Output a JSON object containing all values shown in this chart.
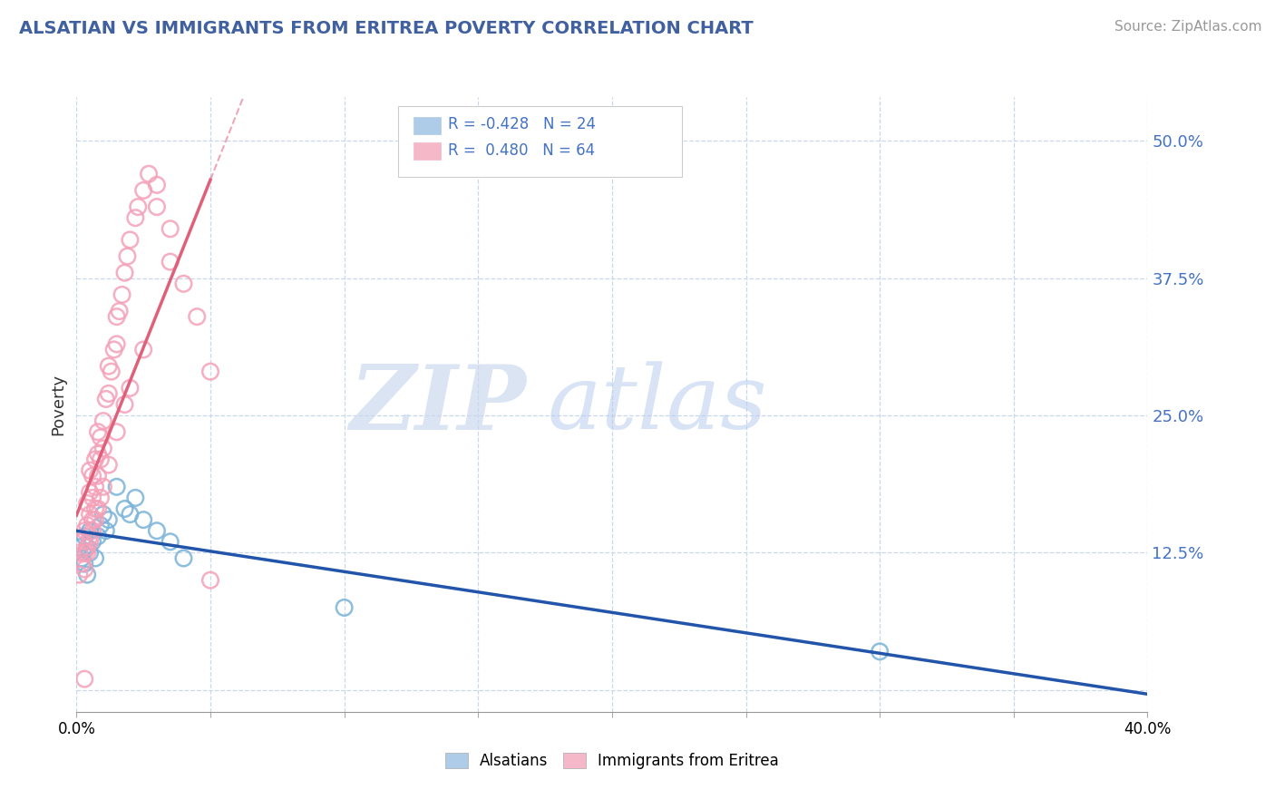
{
  "title": "ALSATIAN VS IMMIGRANTS FROM ERITREA POVERTY CORRELATION CHART",
  "source": "Source: ZipAtlas.com",
  "ylabel": "Poverty",
  "xlim": [
    0.0,
    0.4
  ],
  "ylim": [
    -0.02,
    0.54
  ],
  "y_ticks": [
    0.0,
    0.125,
    0.25,
    0.375,
    0.5
  ],
  "y_tick_labels": [
    "",
    "12.5%",
    "25.0%",
    "37.5%",
    "50.0%"
  ],
  "x_ticks": [
    0.0,
    0.05,
    0.1,
    0.15,
    0.2,
    0.25,
    0.3,
    0.35,
    0.4
  ],
  "x_tick_labels": [
    "0.0%",
    "",
    "",
    "",
    "",
    "",
    "",
    "",
    "40.0%"
  ],
  "alsatians_color": "#7ab3d9",
  "eritrea_color": "#f4a0b8",
  "alsatians_line_color": "#2255aa",
  "eritrea_line_color": "#e0607a",
  "legend_blue_color": "#aecce8",
  "legend_pink_color": "#f5b8c8",
  "watermark_zip_color": "#ccd9ee",
  "watermark_atlas_color": "#b8ccee",
  "alsatians_x": [
    0.001,
    0.002,
    0.003,
    0.003,
    0.004,
    0.004,
    0.005,
    0.005,
    0.006,
    0.007,
    0.008,
    0.009,
    0.01,
    0.011,
    0.012,
    0.015,
    0.018,
    0.02,
    0.022,
    0.025,
    0.03,
    0.035,
    0.04,
    0.1,
    0.3
  ],
  "alsatians_y": [
    0.13,
    0.12,
    0.14,
    0.115,
    0.13,
    0.105,
    0.125,
    0.145,
    0.135,
    0.12,
    0.14,
    0.15,
    0.16,
    0.145,
    0.155,
    0.185,
    0.165,
    0.16,
    0.175,
    0.155,
    0.145,
    0.135,
    0.12,
    0.075,
    0.035
  ],
  "eritrea_x": [
    0.001,
    0.001,
    0.002,
    0.002,
    0.003,
    0.003,
    0.003,
    0.004,
    0.004,
    0.004,
    0.005,
    0.005,
    0.005,
    0.005,
    0.006,
    0.006,
    0.006,
    0.007,
    0.007,
    0.007,
    0.008,
    0.008,
    0.008,
    0.009,
    0.009,
    0.01,
    0.01,
    0.011,
    0.012,
    0.012,
    0.013,
    0.014,
    0.015,
    0.015,
    0.016,
    0.017,
    0.018,
    0.019,
    0.02,
    0.022,
    0.023,
    0.025,
    0.027,
    0.03,
    0.03,
    0.035,
    0.035,
    0.04,
    0.045,
    0.05,
    0.003,
    0.004,
    0.005,
    0.006,
    0.007,
    0.008,
    0.009,
    0.01,
    0.012,
    0.015,
    0.018,
    0.02,
    0.025,
    0.05
  ],
  "eritrea_y": [
    0.105,
    0.125,
    0.115,
    0.135,
    0.125,
    0.145,
    0.01,
    0.13,
    0.15,
    0.17,
    0.14,
    0.16,
    0.18,
    0.2,
    0.155,
    0.175,
    0.195,
    0.165,
    0.185,
    0.21,
    0.195,
    0.215,
    0.235,
    0.21,
    0.23,
    0.22,
    0.245,
    0.265,
    0.27,
    0.295,
    0.29,
    0.31,
    0.315,
    0.34,
    0.345,
    0.36,
    0.38,
    0.395,
    0.41,
    0.43,
    0.44,
    0.455,
    0.47,
    0.44,
    0.46,
    0.42,
    0.39,
    0.37,
    0.34,
    0.29,
    0.11,
    0.125,
    0.135,
    0.145,
    0.155,
    0.165,
    0.175,
    0.185,
    0.205,
    0.235,
    0.26,
    0.275,
    0.31,
    0.1
  ],
  "eritrea_trend_x0": 0.0,
  "eritrea_trend_x1": 0.05,
  "eritrea_trend_dash_x1": 0.135,
  "alsatian_trend_x0": 0.0,
  "alsatian_trend_x1": 0.4
}
